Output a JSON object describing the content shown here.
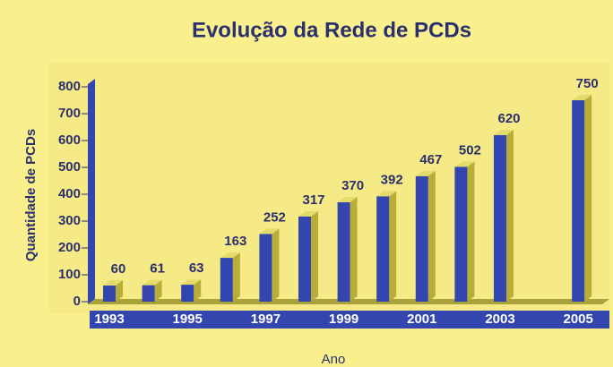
{
  "chart_data": {
    "type": "bar3d",
    "title": "Evolução da Rede de PCDs",
    "x_label": "Ano",
    "y_label": "Quantidade de PCDs",
    "categories": [
      "1993",
      null,
      "1995",
      null,
      "1997",
      null,
      "1999",
      null,
      "2001",
      null,
      "2003",
      null,
      "2005"
    ],
    "values": [
      60,
      61,
      63,
      163,
      252,
      317,
      370,
      392,
      467,
      502,
      620,
      null,
      750
    ],
    "color": "#3346b0",
    "ylim": [
      0,
      800
    ],
    "yticks": [
      0,
      100,
      200,
      300,
      400,
      500,
      600,
      700,
      800
    ]
  }
}
